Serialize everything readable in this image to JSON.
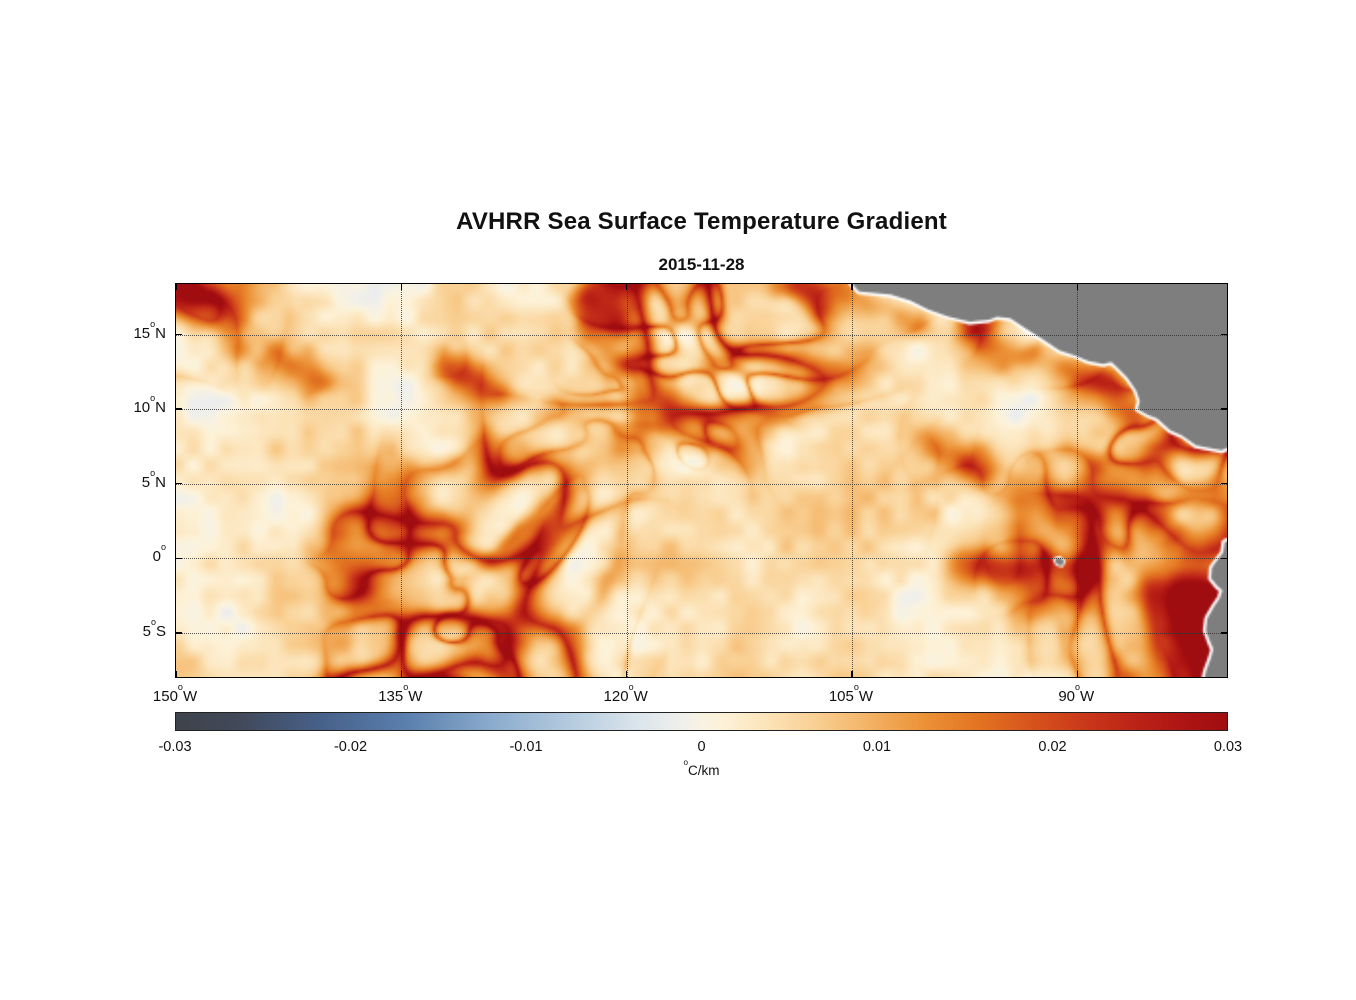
{
  "figure": {
    "title": "AVHRR Sea Surface Temperature Gradient",
    "date": "2015-11-28"
  },
  "chart_data": {
    "type": "heatmap",
    "title": "AVHRR Sea Surface Temperature Gradient",
    "subtitle_date": "2015-11-28",
    "deg_sup": "o",
    "x_axis": {
      "range_deg_west": [
        150,
        79.9
      ],
      "ticks": [
        {
          "lon_w": 150,
          "value": "150",
          "hemi": "W"
        },
        {
          "lon_w": 135,
          "value": "135",
          "hemi": "W"
        },
        {
          "lon_w": 120,
          "value": "120",
          "hemi": "W"
        },
        {
          "lon_w": 105,
          "value": "105",
          "hemi": "W"
        },
        {
          "lon_w": 90,
          "value": "90",
          "hemi": "W"
        }
      ]
    },
    "y_axis": {
      "range_lat": [
        -8.1,
        18.4
      ],
      "ticks": [
        {
          "lat": 15,
          "value": "15",
          "hemi": "N"
        },
        {
          "lat": 10,
          "value": "10",
          "hemi": "N"
        },
        {
          "lat": 5,
          "value": "5",
          "hemi": "N"
        },
        {
          "lat": 0,
          "value": "0",
          "hemi": ""
        },
        {
          "lat": -5,
          "value": "5",
          "hemi": "S"
        }
      ]
    },
    "colorbar": {
      "range": [
        -0.03,
        0.03
      ],
      "tick_labels": [
        "-0.03",
        "-0.02",
        "-0.01",
        "0",
        "0.01",
        "0.02",
        "0.03"
      ],
      "unit": {
        "sup": "o",
        "text": "C/km"
      },
      "colormap": [
        {
          "t": 0.0,
          "c": "#3e434b"
        },
        {
          "t": 0.06,
          "c": "#41495a"
        },
        {
          "t": 0.14,
          "c": "#47618b"
        },
        {
          "t": 0.22,
          "c": "#5b7fae"
        },
        {
          "t": 0.3,
          "c": "#8aabcc"
        },
        {
          "t": 0.38,
          "c": "#b7cde0"
        },
        {
          "t": 0.44,
          "c": "#dbe5ec"
        },
        {
          "t": 0.48,
          "c": "#efefec"
        },
        {
          "t": 0.5,
          "c": "#f8f2e2"
        },
        {
          "t": 0.52,
          "c": "#fdf2d8"
        },
        {
          "t": 0.56,
          "c": "#fce4ba"
        },
        {
          "t": 0.61,
          "c": "#f9cf92"
        },
        {
          "t": 0.66,
          "c": "#f3b264"
        },
        {
          "t": 0.71,
          "c": "#ec9338"
        },
        {
          "t": 0.76,
          "c": "#e37622"
        },
        {
          "t": 0.81,
          "c": "#d8561d"
        },
        {
          "t": 0.86,
          "c": "#cb3a1a"
        },
        {
          "t": 0.91,
          "c": "#bc2417"
        },
        {
          "t": 0.96,
          "c": "#ad1413"
        },
        {
          "t": 1.0,
          "c": "#a00d10"
        }
      ]
    },
    "land_color": "#7e7e7e",
    "coast_color": "#ffffff",
    "land_polygons": [
      {
        "name": "central-america-mexico-coast",
        "small": false,
        "points": [
          [
            105.3,
            18.9
          ],
          [
            104.4,
            17.9
          ],
          [
            102.3,
            17.7
          ],
          [
            101.0,
            17.3
          ],
          [
            99.8,
            16.7
          ],
          [
            98.4,
            16.2
          ],
          [
            97.0,
            15.85
          ],
          [
            95.7,
            16.0
          ],
          [
            95.2,
            16.2
          ],
          [
            94.3,
            16.1
          ],
          [
            93.3,
            15.4
          ],
          [
            92.2,
            14.7
          ],
          [
            91.0,
            13.9
          ],
          [
            89.9,
            13.55
          ],
          [
            89.1,
            13.2
          ],
          [
            88.1,
            13.0
          ],
          [
            87.55,
            13.15
          ],
          [
            87.2,
            12.8
          ],
          [
            86.5,
            12.1
          ],
          [
            85.9,
            11.2
          ],
          [
            85.65,
            10.5
          ],
          [
            85.8,
            9.95
          ],
          [
            85.1,
            9.55
          ],
          [
            84.5,
            9.3
          ],
          [
            83.6,
            8.5
          ],
          [
            82.8,
            8.15
          ],
          [
            81.9,
            7.5
          ],
          [
            80.9,
            7.3
          ],
          [
            80.2,
            7.15
          ],
          [
            79.3,
            7.6
          ],
          [
            79.3,
            18.9
          ]
        ]
      },
      {
        "name": "south-america-coast",
        "small": false,
        "points": [
          [
            79.3,
            1.3
          ],
          [
            80.0,
            0.95
          ],
          [
            80.1,
            0.25
          ],
          [
            80.5,
            -0.3
          ],
          [
            80.85,
            -0.8
          ],
          [
            80.9,
            -1.5
          ],
          [
            80.5,
            -2.0
          ],
          [
            80.15,
            -2.3
          ],
          [
            80.3,
            -2.8
          ],
          [
            80.7,
            -3.4
          ],
          [
            81.15,
            -4.2
          ],
          [
            81.25,
            -5.0
          ],
          [
            81.0,
            -5.7
          ],
          [
            80.75,
            -6.3
          ],
          [
            80.95,
            -7.0
          ],
          [
            81.25,
            -7.8
          ],
          [
            81.4,
            -8.6
          ],
          [
            79.3,
            -8.6
          ]
        ]
      },
      {
        "name": "galapagos-islands",
        "small": true,
        "points": [
          [
            91.35,
            -0.2
          ],
          [
            91.0,
            -0.1
          ],
          [
            90.7,
            -0.3
          ],
          [
            90.85,
            -0.65
          ],
          [
            91.2,
            -0.55
          ]
        ]
      }
    ],
    "features": [
      {
        "lon1": 105.0,
        "lat1": 17.3,
        "lon2": 100.8,
        "lat2": 16.0,
        "sigma_deg": 0.8,
        "amp": 0.016
      },
      {
        "lon1": 96.4,
        "lat1": 15.4,
        "lon2": 94.1,
        "lat2": 13.3,
        "sigma_deg": 0.9,
        "amp": 0.021
      },
      {
        "lon1": 92.6,
        "lat1": 13.6,
        "lon2": 90.0,
        "lat2": 12.3,
        "sigma_deg": 0.8,
        "amp": 0.015
      },
      {
        "lon1": 88.2,
        "lat1": 11.6,
        "lon2": 86.3,
        "lat2": 9.8,
        "sigma_deg": 0.85,
        "amp": 0.019
      },
      {
        "lon1": 91.8,
        "lat1": -0.25,
        "lon2": 89.6,
        "lat2": -0.95,
        "sigma_deg": 0.6,
        "amp": 0.022
      },
      {
        "lon1": 97.6,
        "lat1": -0.4,
        "lon2": 93.0,
        "lat2": -1.0,
        "sigma_deg": 0.8,
        "amp": 0.012
      },
      {
        "lon1": 84.6,
        "lat1": -2.2,
        "lon2": 80.6,
        "lat2": -3.3,
        "sigma_deg": 1.0,
        "amp": 0.023
      },
      {
        "lon1": 81.6,
        "lat1": -4.4,
        "lon2": 80.5,
        "lat2": -7.6,
        "sigma_deg": 0.9,
        "amp": 0.026
      },
      {
        "lon1": 122.4,
        "lat1": 17.7,
        "lon2": 120.7,
        "lat2": 16.2,
        "sigma_deg": 0.8,
        "amp": 0.019
      },
      {
        "lon1": 108.4,
        "lat1": 18.2,
        "lon2": 106.9,
        "lat2": 17.0,
        "sigma_deg": 0.7,
        "amp": 0.016
      },
      {
        "lon1": 131.6,
        "lat1": 12.9,
        "lon2": 128.7,
        "lat2": 11.2,
        "sigma_deg": 0.9,
        "amp": 0.013
      },
      {
        "lon1": 143.6,
        "lat1": 13.6,
        "lon2": 141.0,
        "lat2": 12.4,
        "sigma_deg": 0.9,
        "amp": 0.012
      },
      {
        "lon1": 99.6,
        "lat1": 7.6,
        "lon2": 96.4,
        "lat2": 6.0,
        "sigma_deg": 0.9,
        "amp": 0.011
      }
    ],
    "texture": {
      "seed": 11,
      "warp_freq": 2.0,
      "warp_amp": 0.26,
      "ridge_freq": 5.2,
      "ridge_freq2": 9.5,
      "mask_freq": 1.5,
      "base_level": 0.0032,
      "filament_amp": 0.035
    }
  }
}
